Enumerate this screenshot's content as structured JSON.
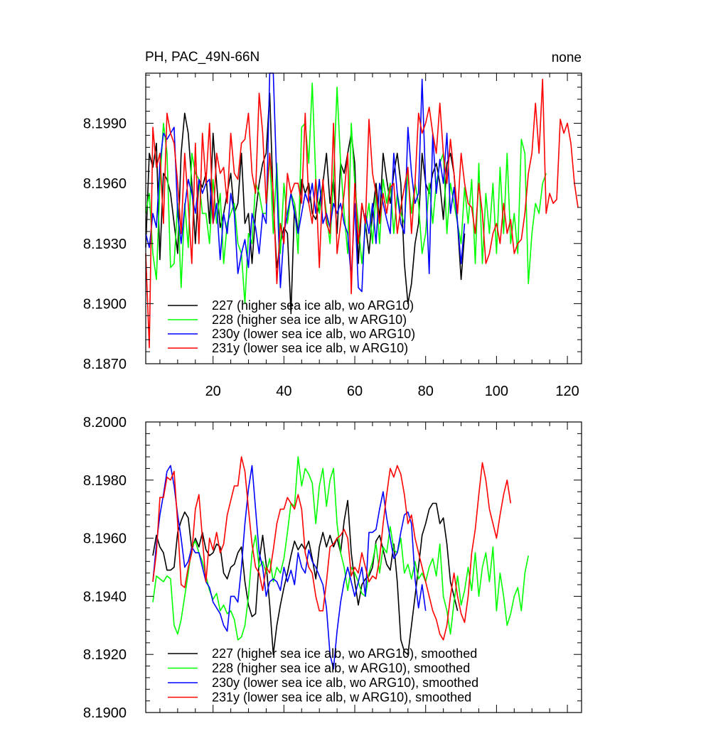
{
  "panel_top": {
    "title_left": "PH, PAC_49N-66N",
    "title_right": "none"
  },
  "chart_data": [
    {
      "type": "line",
      "title": "PH, PAC_49N-66N",
      "title_right": "none",
      "xlim": [
        1,
        124
      ],
      "ylim": [
        8.187,
        8.2015
      ],
      "xticks": [
        20,
        40,
        60,
        80,
        100,
        120
      ],
      "yticks": [
        8.187,
        8.19,
        8.193,
        8.196,
        8.199
      ],
      "ytick_labels": [
        "8.1870",
        "8.1900",
        "8.1930",
        "8.1960",
        "8.1990"
      ],
      "legend_placement": "lower-left",
      "series": [
        {
          "name": "227 (higher sea ice alb, wo ARG10)",
          "color": "#000000",
          "x_start": 1,
          "values": [
            8.1928,
            8.1975,
            8.1968,
            8.198,
            8.1922,
            8.1965,
            8.1962,
            8.1955,
            8.194,
            8.1925,
            8.1975,
            8.1995,
            8.1985,
            8.196,
            8.193,
            8.1962,
            8.1958,
            8.1965,
            8.194,
            8.1985,
            8.196,
            8.1938,
            8.1945,
            8.1955,
            8.1965,
            8.1945,
            8.195,
            8.1975,
            8.194,
            8.1945,
            8.192,
            8.1945,
            8.196,
            8.197,
            8.1975,
            8.2005,
            8.195,
            8.1918,
            8.193,
            8.1938,
            8.1935,
            8.1895,
            8.195,
            8.1935,
            8.1962,
            8.1955,
            8.196,
            8.1945,
            8.1942,
            8.195,
            8.196,
            8.1975,
            8.195,
            8.1962,
            8.1935,
            8.197,
            8.1965,
            8.1975,
            8.1985,
            8.197,
            8.192,
            8.195,
            8.194,
            8.1925,
            8.1945,
            8.196,
            8.1942,
            8.1975,
            8.1962,
            8.195,
            8.1965,
            8.1975,
            8.196,
            8.192,
            8.19,
            8.191,
            8.193,
            8.194,
            8.1975,
            8.196,
            8.1955,
            8.1965,
            8.197,
            8.196,
            8.1942,
            8.197,
            8.1975,
            8.1965,
            8.194,
            8.1912,
            8.1935
          ]
        },
        {
          "name": "228 (higher sea ice alb, w ARG10)",
          "color": "#00ff00",
          "x_start": 1,
          "values": [
            8.1945,
            8.1955,
            8.1925,
            8.1912,
            8.196,
            8.199,
            8.1975,
            8.1918,
            8.192,
            8.195,
            8.1908,
            8.195,
            8.1928,
            8.1975,
            8.1965,
            8.1962,
            8.1945,
            8.1945,
            8.193,
            8.1962,
            8.194,
            8.1955,
            8.192,
            8.194,
            8.1945,
            8.195,
            8.193,
            8.1925,
            8.19,
            8.1935,
            8.193,
            8.196,
            8.1955,
            8.1945,
            8.1945,
            8.1975,
            8.1935,
            8.197,
            8.1925,
            8.196,
            8.194,
            8.1955,
            8.195,
            8.1925,
            8.1988,
            8.199,
            8.197,
            8.201,
            8.1962,
            8.1945,
            8.196,
            8.1945,
            8.193,
            8.1962,
            8.2008,
            8.197,
            8.1945,
            8.1925,
            8.199,
            8.196,
            8.194,
            8.192,
            8.1938,
            8.195,
            8.193,
            8.1955,
            8.193,
            8.1962,
            8.195,
            8.196,
            8.1935,
            8.1955,
            8.1945,
            8.194,
            8.1965,
            8.1945,
            8.196,
            8.195,
            8.1925,
            8.1935,
            8.196,
            8.194,
            8.196,
            8.197,
            8.1975,
            8.1935,
            8.196,
            8.195,
            8.194,
            8.193,
            8.1958,
            8.194,
            8.1962,
            8.192,
            8.197,
            8.192,
            8.1955,
            8.1935,
            8.196,
            8.1925,
            8.1968,
            8.1935,
            8.1975,
            8.193,
            8.1945,
            8.1925,
            8.1982,
            8.1975,
            8.191,
            8.1935,
            8.195,
            8.1945,
            8.196,
            8.1965
          ]
        },
        {
          "name": "230y (lower sea ice alb, wo ARG10)",
          "color": "#0000ff",
          "x_start": 1,
          "values": [
            8.1935,
            8.1928,
            8.1945,
            8.1938,
            8.197,
            8.1985,
            8.1982,
            8.1985,
            8.1988,
            8.1945,
            8.193,
            8.1948,
            8.1962,
            8.1955,
            8.1945,
            8.1962,
            8.1955,
            8.196,
            8.1962,
            8.194,
            8.195,
            8.1922,
            8.1945,
            8.1935,
            8.1955,
            8.1945,
            8.1915,
            8.1925,
            8.1932,
            8.1918,
            8.1945,
            8.1938,
            8.1925,
            8.1945,
            8.194,
            8.2015,
            8.2015,
            8.196,
            8.1908,
            8.1935,
            8.1945,
            8.1955,
            8.1945,
            8.1935,
            8.1945,
            8.1955,
            8.195,
            8.196,
            8.1945,
            8.1962,
            8.194,
            8.1945,
            8.1938,
            8.195,
            8.1945,
            8.195,
            8.194,
            8.1935,
            8.1912,
            8.195,
            8.1908,
            8.1906,
            8.1945,
            8.1935,
            8.195,
            8.193,
            8.196,
            8.195,
            8.1942,
            8.1935,
            8.1975,
            8.1955,
            8.194,
            8.1935,
            8.1988,
            8.1965,
            8.195,
            8.1955,
            8.2012,
            8.196,
            8.1915,
            8.1985,
            8.1955,
            8.1972,
            8.196,
            8.1985,
            8.1945,
            8.1958,
            8.194,
            8.192,
            8.194
          ]
        },
        {
          "name": "231y (lower sea ice alb, w ARG10)",
          "color": "#ff0000",
          "x_start": 1,
          "values": [
            8.1925,
            8.1878,
            8.1988,
            8.1968,
            8.1975,
            8.194,
            8.1995,
            8.1985,
            8.198,
            8.196,
            8.1935,
            8.1975,
            8.195,
            8.192,
            8.198,
            8.193,
            8.1985,
            8.196,
            8.199,
            8.194,
            8.1975,
            8.1965,
            8.1968,
            8.195,
            8.1985,
            8.1965,
            8.1962,
            8.198,
            8.1982,
            8.1995,
            8.1965,
            8.1955,
            8.2005,
            8.1985,
            8.195,
            8.1975,
            8.1955,
            8.191,
            8.194,
            8.193,
            8.1965,
            8.1955,
            8.196,
            8.196,
            8.195,
            8.1995,
            8.195,
            8.194,
            8.1962,
            8.1918,
            8.1962,
            8.194,
            8.1935,
            8.199,
            8.1925,
            8.194,
            8.1955,
            8.1975,
            8.1905,
            8.196,
            8.193,
            8.195,
            8.194,
            8.1992,
            8.1965,
            8.1955,
            8.194,
            8.1955,
            8.1945,
            8.1958,
            8.196,
            8.1935,
            8.1948,
            8.1958,
            8.1968,
            8.1935,
            8.196,
            8.1995,
            8.1985,
            8.199,
            8.1998,
            8.1985,
            8.1975,
            8.2,
            8.1975,
            8.196,
            8.1982,
            8.1965,
            8.1945,
            8.1975,
            8.196,
            8.195,
            8.1948,
            8.1935,
            8.196,
            8.1945,
            8.192,
            8.1925,
            8.1935,
            8.194,
            8.193,
            8.195,
            8.1935,
            8.1942,
            8.1925,
            8.193,
            8.1932,
            8.1945,
            8.1965,
            8.1975,
            8.2,
            8.1975,
            8.2012,
            8.1945,
            8.1955,
            8.195,
            8.1952,
            8.1992,
            8.1985,
            8.199,
            8.198,
            8.196,
            8.1948
          ]
        }
      ]
    },
    {
      "type": "line",
      "xlim": [
        1,
        124
      ],
      "ylim": [
        8.19,
        8.2
      ],
      "xticks": [
        20,
        40,
        60,
        80,
        100,
        120
      ],
      "yticks": [
        8.19,
        8.192,
        8.194,
        8.196,
        8.198,
        8.2
      ],
      "ytick_labels": [
        "8.1900",
        "8.1920",
        "8.1940",
        "8.1960",
        "8.1980",
        "8.2000"
      ],
      "legend_placement": "lower-left",
      "series": [
        {
          "name": "227 (higher sea ice alb, wo ARG10), smoothed",
          "color": "#000000",
          "x_start": 3,
          "values": [
            8.1954,
            8.1961,
            8.1957,
            8.1955,
            8.1949,
            8.1949,
            8.195,
            8.1962,
            8.1966,
            8.1969,
            8.1967,
            8.1956,
            8.196,
            8.1957,
            8.1962,
            8.1956,
            8.1954,
            8.1955,
            8.1958,
            8.1957,
            8.1948,
            8.1946,
            8.195,
            8.1951,
            8.1955,
            8.1957,
            8.1945,
            8.1937,
            8.1933,
            8.1934,
            8.1952,
            8.1961,
            8.1951,
            8.1937,
            8.192,
            8.193,
            8.1937,
            8.1943,
            8.1948,
            8.1954,
            8.1959,
            8.1956,
            8.1958,
            8.1956,
            8.1959,
            8.1953,
            8.1946,
            8.1957,
            8.1962,
            8.1957,
            8.1961,
            8.1957,
            8.196,
            8.1955,
            8.1966,
            8.1973,
            8.1955,
            8.1945,
            8.1937,
            8.1944,
            8.1946,
            8.1947,
            8.195,
            8.1959,
            8.1961,
            8.1956,
            8.1951,
            8.1949,
            8.1958,
            8.1945,
            8.1925,
            8.1921,
            8.192,
            8.193,
            8.194,
            8.195,
            8.1961,
            8.1965,
            8.197,
            8.1972,
            8.1972,
            8.1965,
            8.1967,
            8.1958,
            8.1945,
            8.194,
            8.1935
          ]
        },
        {
          "name": "228 (higher sea ice alb, w ARG10), smoothed",
          "color": "#00ff00",
          "x_start": 3,
          "values": [
            8.1938,
            8.1947,
            8.1946,
            8.1945,
            8.1947,
            8.1946,
            8.193,
            8.1927,
            8.1932,
            8.194,
            8.1948,
            8.1957,
            8.1959,
            8.1955,
            8.1952,
            8.1947,
            8.1942,
            8.1939,
            8.1941,
            8.1935,
            8.1937,
            8.1934,
            8.1935,
            8.1932,
            8.1925,
            8.1926,
            8.193,
            8.194,
            8.1955,
            8.1961,
            8.195,
            8.1952,
            8.1948,
            8.1953,
            8.1945,
            8.195,
            8.1948,
            8.1953,
            8.1962,
            8.1972,
            8.1971,
            8.1988,
            8.1978,
            8.1984,
            8.1982,
            8.1979,
            8.1965,
            8.1978,
            8.1984,
            8.1971,
            8.198,
            8.1984,
            8.1965,
            8.1955,
            8.195,
            8.1942,
            8.195,
            8.1948,
            8.1945,
            8.1941,
            8.194,
            8.1948,
            8.1952,
            8.1958,
            8.1948,
            8.1957,
            8.1955,
            8.1964,
            8.1956,
            8.1955,
            8.196,
            8.1948,
            8.1951,
            8.1946,
            8.1952,
            8.1946,
            8.1948,
            8.1945,
            8.195,
            8.1953,
            8.1947,
            8.1958,
            8.194,
            8.1935,
            8.1927,
            8.1938,
            8.1947,
            8.1937,
            8.1942,
            8.195,
            8.1942,
            8.1955,
            8.194,
            8.195,
            8.1955,
            8.1945,
            8.1957,
            8.1935,
            8.1948,
            8.194,
            8.193,
            8.1934,
            8.194,
            8.1943,
            8.1935,
            8.1948,
            8.1954
          ]
        },
        {
          "name": "230y (lower sea ice alb, wo ARG10), smoothed",
          "color": "#0000ff",
          "x_start": 3,
          "values": [
            8.1945,
            8.1958,
            8.1968,
            8.1975,
            8.1983,
            8.1985,
            8.1978,
            8.1968,
            8.196,
            8.195,
            8.1952,
            8.1957,
            8.1955,
            8.1955,
            8.195,
            8.1945,
            8.1943,
            8.1938,
            8.1936,
            8.1934,
            8.193,
            8.1928,
            8.194,
            8.194,
            8.1938,
            8.195,
            8.1965,
            8.1977,
            8.1985,
            8.197,
            8.1955,
            8.195,
            8.194,
            8.1945,
            8.1946,
            8.1945,
            8.1942,
            8.195,
            8.1945,
            8.1949,
            8.1944,
            8.1955,
            8.195,
            8.1948,
            8.1956,
            8.1952,
            8.195,
            8.1947,
            8.1944,
            8.1936,
            8.192,
            8.1915,
            8.1928,
            8.1938,
            8.1945,
            8.195,
            8.1945,
            8.194,
            8.1945,
            8.195,
            8.194,
            8.1962,
            8.1962,
            8.1963,
            8.197,
            8.1976,
            8.1967,
            8.196,
            8.1953,
            8.1955,
            8.1962,
            8.1968,
            8.1969,
            8.1965,
            8.1946,
            8.1936,
            8.1944,
            8.1935
          ]
        },
        {
          "name": "231y (lower sea ice alb, w ARG10), smoothed",
          "color": "#ff0000",
          "x_start": 3,
          "values": [
            8.1945,
            8.1955,
            8.1974,
            8.1974,
            8.1981,
            8.198,
            8.1983,
            8.1965,
            8.1944,
            8.1943,
            8.195,
            8.1955,
            8.197,
            8.1975,
            8.196,
            8.1945,
            8.196,
            8.1956,
            8.1962,
            8.1955,
            8.1958,
            8.1968,
            8.1973,
            8.1978,
            8.1978,
            8.1988,
            8.1983,
            8.197,
            8.1958,
            8.195,
            8.1948,
            8.1942,
            8.195,
            8.1948,
            8.1956,
            8.1965,
            8.197,
            8.197,
            8.1974,
            8.1972,
            8.197,
            8.1975,
            8.197,
            8.1955,
            8.195,
            8.1948,
            8.194,
            8.1935,
            8.1935,
            8.1945,
            8.1957,
            8.1958,
            8.196,
            8.1961,
            8.1963,
            8.196,
            8.1947,
            8.195,
            8.1948,
            8.1955,
            8.195,
            8.1945,
            8.1947,
            8.1946,
            8.1953,
            8.1965,
            8.1975,
            8.1984,
            8.1981,
            8.1985,
            8.1982,
            8.1975,
            8.1965,
            8.1968,
            8.196,
            8.1955,
            8.195,
            8.1945,
            8.194,
            8.1935,
            8.1932,
            8.1927,
            8.1925,
            8.193,
            8.194,
            8.1948,
            8.194,
            8.1934,
            8.1931,
            8.194,
            8.1955,
            8.1963,
            8.1975,
            8.1986,
            8.198,
            8.197,
            8.1965,
            8.196,
            8.1968,
            8.1975,
            8.198,
            8.1972
          ]
        }
      ]
    }
  ]
}
